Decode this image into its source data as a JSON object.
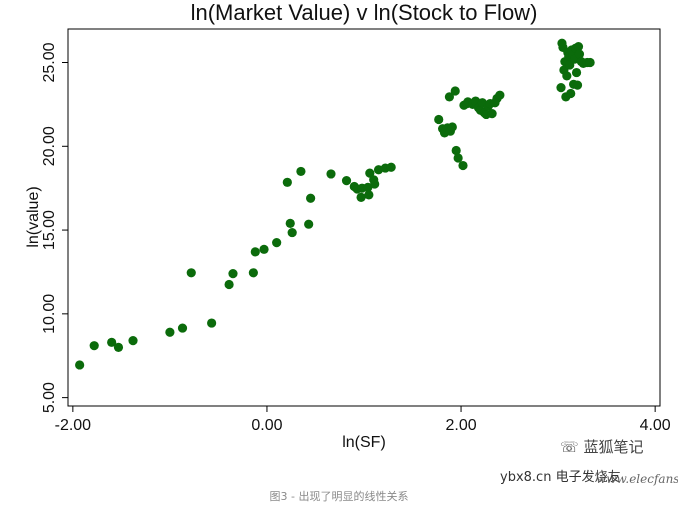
{
  "chart_data": {
    "type": "scatter",
    "title": "ln(Market Value) v ln(Stock to Flow)",
    "xlabel": "ln(SF)",
    "ylabel": "ln(value)",
    "xlim": [
      -2.05,
      4.05
    ],
    "ylim": [
      4.5,
      27.0
    ],
    "xticks": [
      -2,
      0,
      2,
      4
    ],
    "xtick_labels": [
      "-2.00",
      "0.00",
      "2.00",
      "4.00"
    ],
    "yticks": [
      5,
      10,
      15,
      20,
      25
    ],
    "ytick_labels": [
      "5.00",
      "10.00",
      "15.00",
      "20.00",
      "25.00"
    ],
    "grid": false,
    "marker_color": "#0b6b0b",
    "points": [
      [
        -1.93,
        6.95
      ],
      [
        -1.78,
        8.1
      ],
      [
        -1.6,
        8.3
      ],
      [
        -1.53,
        8.0
      ],
      [
        -1.38,
        8.4
      ],
      [
        -1.0,
        8.9
      ],
      [
        -0.87,
        9.15
      ],
      [
        -0.57,
        9.45
      ],
      [
        -0.78,
        12.45
      ],
      [
        -0.39,
        11.75
      ],
      [
        -0.35,
        12.4
      ],
      [
        -0.14,
        12.45
      ],
      [
        -0.12,
        13.7
      ],
      [
        -0.03,
        13.85
      ],
      [
        0.1,
        14.25
      ],
      [
        0.21,
        17.85
      ],
      [
        0.24,
        15.4
      ],
      [
        0.26,
        14.85
      ],
      [
        0.35,
        18.5
      ],
      [
        0.43,
        15.35
      ],
      [
        0.45,
        16.9
      ],
      [
        0.66,
        18.35
      ],
      [
        0.82,
        17.95
      ],
      [
        0.9,
        17.6
      ],
      [
        0.93,
        17.45
      ],
      [
        0.98,
        17.5
      ],
      [
        0.97,
        16.95
      ],
      [
        1.04,
        17.55
      ],
      [
        1.05,
        17.1
      ],
      [
        1.06,
        18.4
      ],
      [
        1.1,
        18.0
      ],
      [
        1.11,
        17.75
      ],
      [
        1.15,
        18.6
      ],
      [
        1.22,
        18.7
      ],
      [
        1.28,
        18.75
      ],
      [
        1.77,
        21.6
      ],
      [
        1.81,
        21.05
      ],
      [
        1.83,
        20.8
      ],
      [
        1.86,
        21.1
      ],
      [
        1.89,
        20.9
      ],
      [
        1.91,
        21.15
      ],
      [
        1.88,
        22.95
      ],
      [
        1.94,
        23.3
      ],
      [
        1.95,
        19.75
      ],
      [
        1.97,
        19.3
      ],
      [
        2.02,
        18.85
      ],
      [
        2.03,
        22.45
      ],
      [
        2.06,
        22.55
      ],
      [
        2.07,
        22.65
      ],
      [
        2.12,
        22.5
      ],
      [
        2.15,
        22.7
      ],
      [
        2.18,
        22.3
      ],
      [
        2.2,
        22.15
      ],
      [
        2.22,
        22.6
      ],
      [
        2.24,
        22.0
      ],
      [
        2.26,
        21.9
      ],
      [
        2.28,
        22.4
      ],
      [
        2.3,
        22.55
      ],
      [
        2.32,
        21.95
      ],
      [
        2.35,
        22.6
      ],
      [
        2.37,
        22.85
      ],
      [
        2.4,
        23.05
      ],
      [
        3.03,
        23.5
      ],
      [
        3.04,
        26.15
      ],
      [
        3.05,
        25.9
      ],
      [
        3.06,
        24.55
      ],
      [
        3.07,
        25.05
      ],
      [
        3.08,
        22.95
      ],
      [
        3.09,
        24.2
      ],
      [
        3.1,
        25.6
      ],
      [
        3.11,
        25.35
      ],
      [
        3.12,
        24.85
      ],
      [
        3.13,
        23.15
      ],
      [
        3.14,
        25.75
      ],
      [
        3.15,
        25.45
      ],
      [
        3.16,
        23.7
      ],
      [
        3.17,
        25.2
      ],
      [
        3.18,
        25.85
      ],
      [
        3.19,
        24.4
      ],
      [
        3.2,
        23.65
      ],
      [
        3.21,
        25.95
      ],
      [
        3.22,
        25.5
      ],
      [
        3.24,
        25.05
      ],
      [
        3.26,
        24.95
      ],
      [
        3.3,
        25.0
      ],
      [
        3.33,
        25.0
      ]
    ]
  },
  "caption": "图3 - 出现了明显的线性关系",
  "watermark": {
    "wechat_handle": "蓝狐笔记",
    "site_left": "ybx8.cn",
    "site_right": "电子发烧友",
    "site_sub": "www.elecfans.com"
  }
}
